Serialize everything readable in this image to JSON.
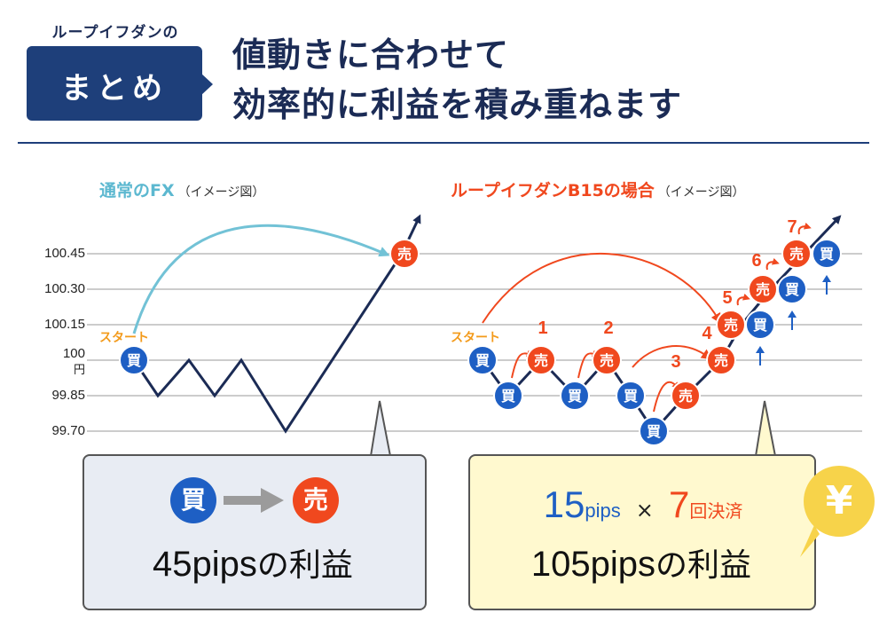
{
  "header": {
    "small_label": "ループイフダンの",
    "box_label": "まとめ",
    "title_line1": "値動きに合わせて",
    "title_line2": "効率的に利益を積み重ねます"
  },
  "left_chart": {
    "title": "通常のFX",
    "note": "（イメージ図）",
    "start_label": "スタート",
    "buy_badge": "買",
    "sell_badge": "売"
  },
  "right_chart": {
    "title": "ループイフダンB15の場合",
    "note": "（イメージ図）",
    "start_label": "スタート",
    "buy_badge": "買",
    "sell_badge": "売",
    "trade_numbers": [
      "1",
      "2",
      "3",
      "4",
      "5",
      "6",
      "7"
    ]
  },
  "chart_data": [
    {
      "type": "line",
      "title": "通常のFX",
      "y_ticks": [
        "100.45",
        "100.30",
        "100.15",
        "100",
        "99.85",
        "99.70"
      ],
      "y_unit": "円",
      "ylim": [
        99.7,
        100.45
      ],
      "values": [
        100.0,
        99.85,
        100.0,
        99.85,
        100.0,
        99.7,
        100.45,
        100.6
      ],
      "grid": true
    },
    {
      "type": "line",
      "title": "ループイフダンB15の場合",
      "values": [
        100.0,
        99.85,
        100.0,
        99.85,
        100.0,
        99.85,
        99.7,
        99.85,
        100.0,
        100.15,
        100.3,
        100.45,
        100.6
      ],
      "grid": true
    }
  ],
  "left_box": {
    "buy": "買",
    "sell": "売",
    "result_num": "45pips",
    "result_text": "の利益"
  },
  "right_box": {
    "pips": "15",
    "pips_unit": "pips",
    "times": "×",
    "count": "7",
    "count_unit": "回決済",
    "result_num": "105pips",
    "result_text": "の利益",
    "yen": "¥"
  },
  "colors": {
    "navy": "#1e3f7a",
    "line": "#1b2b55",
    "buy": "#1e5fc4",
    "sell": "#f0481e",
    "left_arrow": "#72c2d6",
    "start": "#f39a1a",
    "grid": "#9a9a9a"
  }
}
